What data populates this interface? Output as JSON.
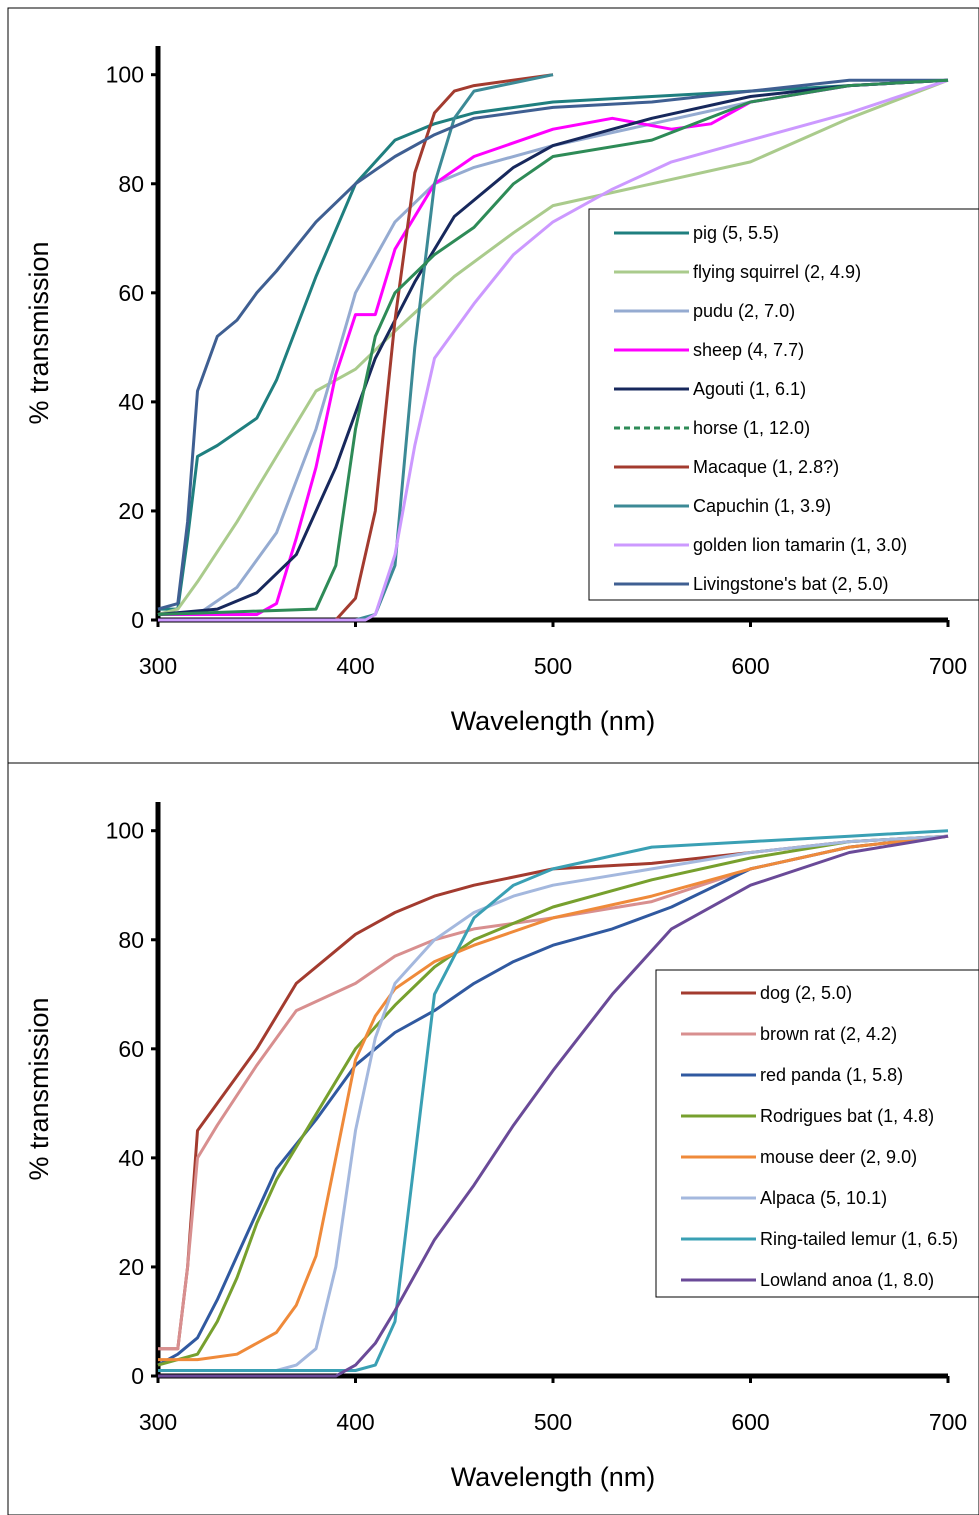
{
  "chart_data": [
    {
      "type": "line",
      "xlabel": "Wavelength (nm)",
      "ylabel": "% transmission",
      "xlim": [
        300,
        700
      ],
      "ylim": [
        0,
        100
      ],
      "x_ticks": [
        "300",
        "400",
        "500",
        "600",
        "700"
      ],
      "y_ticks": [
        "0",
        "20",
        "40",
        "60",
        "80",
        "100"
      ],
      "grid": false,
      "legend_position": "right",
      "series": [
        {
          "name": "pig (5, 5.5)",
          "color": "#1f7f7f",
          "dash": "solid",
          "x": [
            300,
            310,
            315,
            320,
            330,
            350,
            360,
            380,
            400,
            420,
            440,
            460,
            500,
            550,
            600,
            650,
            700
          ],
          "y": [
            2,
            2,
            15,
            30,
            32,
            37,
            44,
            63,
            80,
            88,
            91,
            93,
            95,
            96,
            97,
            98,
            99
          ]
        },
        {
          "name": "flying squirrel (2, 4.9)",
          "color": "#aacb8c",
          "dash": "solid",
          "x": [
            300,
            310,
            320,
            340,
            360,
            380,
            400,
            420,
            450,
            480,
            500,
            550,
            600,
            650,
            700
          ],
          "y": [
            1,
            2,
            7,
            18,
            30,
            42,
            46,
            53,
            63,
            71,
            76,
            80,
            84,
            92,
            99
          ]
        },
        {
          "name": "pudu (2, 7.0)",
          "color": "#95abd1",
          "dash": "solid",
          "x": [
            300,
            320,
            340,
            360,
            380,
            400,
            420,
            440,
            460,
            500,
            550,
            600,
            650,
            700
          ],
          "y": [
            1,
            1,
            6,
            16,
            35,
            60,
            73,
            80,
            83,
            87,
            91,
            95,
            98,
            99
          ]
        },
        {
          "name": "sheep (4, 7.7)",
          "color": "#ff00ff",
          "dash": "solid",
          "x": [
            300,
            350,
            360,
            370,
            380,
            390,
            400,
            410,
            420,
            440,
            460,
            500,
            530,
            560,
            580,
            600,
            650,
            700
          ],
          "y": [
            1,
            1,
            3,
            15,
            28,
            45,
            56,
            56,
            68,
            80,
            85,
            90,
            92,
            90,
            91,
            95,
            98,
            99
          ]
        },
        {
          "name": "Agouti (1, 6.1)",
          "color": "#17285c",
          "dash": "solid",
          "x": [
            300,
            330,
            350,
            370,
            390,
            410,
            430,
            450,
            480,
            500,
            550,
            600,
            650,
            700
          ],
          "y": [
            1,
            2,
            5,
            12,
            28,
            48,
            62,
            74,
            83,
            87,
            92,
            96,
            98,
            99
          ]
        },
        {
          "name": "horse (1, 12.0)",
          "color": "#2e8b57",
          "dash": "dashed",
          "x": [],
          "y": []
        },
        {
          "name": "Macaque (1, 2.8?)",
          "color": "#a33b2f",
          "dash": "solid",
          "x": [
            300,
            390,
            395,
            400,
            410,
            420,
            430,
            440,
            450,
            460,
            500
          ],
          "y": [
            0,
            0,
            2,
            4,
            20,
            55,
            82,
            93,
            97,
            98,
            100
          ]
        },
        {
          "name": "Capuchin (1, 3.9)",
          "color": "#3c8a96",
          "dash": "solid",
          "x": [
            300,
            400,
            410,
            420,
            430,
            440,
            450,
            460,
            500
          ],
          "y": [
            0,
            0,
            1,
            10,
            50,
            80,
            92,
            97,
            100
          ]
        },
        {
          "name": "golden lion tamarin (1, 3.0)",
          "color": "#cc99ff",
          "dash": "solid",
          "x": [
            300,
            405,
            410,
            420,
            430,
            440,
            460,
            480,
            500,
            530,
            560,
            600,
            650,
            700
          ],
          "y": [
            0,
            0,
            1,
            12,
            32,
            48,
            58,
            67,
            73,
            79,
            84,
            88,
            93,
            99
          ]
        },
        {
          "name": "Livingstone's bat (2, 5.0)",
          "color": "#3f5f92",
          "dash": "solid",
          "x": [
            300,
            310,
            315,
            320,
            330,
            340,
            350,
            360,
            380,
            400,
            420,
            440,
            460,
            500,
            550,
            600,
            650,
            700
          ],
          "y": [
            2,
            3,
            18,
            42,
            52,
            55,
            60,
            64,
            73,
            80,
            85,
            89,
            92,
            94,
            95,
            97,
            99,
            99
          ]
        },
        {
          "name": "",
          "color": "#2e8b57",
          "dash": "solid",
          "x": [
            300,
            380,
            390,
            400,
            410,
            420,
            440,
            460,
            480,
            500,
            550,
            600,
            650,
            700
          ],
          "y": [
            1,
            2,
            10,
            35,
            52,
            60,
            67,
            72,
            80,
            85,
            88,
            95,
            98,
            99
          ]
        }
      ]
    },
    {
      "type": "line",
      "xlabel": "Wavelength (nm)",
      "ylabel": "% transmission",
      "xlim": [
        300,
        700
      ],
      "ylim": [
        0,
        100
      ],
      "x_ticks": [
        "300",
        "400",
        "500",
        "600",
        "700"
      ],
      "y_ticks": [
        "0",
        "20",
        "40",
        "60",
        "80",
        "100"
      ],
      "grid": false,
      "legend_position": "right",
      "series": [
        {
          "name": "dog (2, 5.0)",
          "color": "#a33b2f",
          "dash": "solid",
          "x": [
            300,
            310,
            315,
            320,
            330,
            350,
            370,
            390,
            400,
            420,
            440,
            460,
            500,
            550,
            600,
            650,
            700
          ],
          "y": [
            5,
            5,
            20,
            45,
            50,
            60,
            72,
            78,
            81,
            85,
            88,
            90,
            93,
            94,
            96,
            98,
            99
          ]
        },
        {
          "name": "brown rat (2, 4.2)",
          "color": "#d88f8f",
          "dash": "solid",
          "x": [
            300,
            310,
            315,
            320,
            330,
            350,
            370,
            400,
            420,
            440,
            460,
            500,
            550,
            600,
            650,
            700
          ],
          "y": [
            5,
            5,
            20,
            40,
            46,
            57,
            67,
            72,
            77,
            80,
            82,
            84,
            87,
            93,
            97,
            99
          ]
        },
        {
          "name": "red panda (1, 5.8)",
          "color": "#3059a0",
          "dash": "solid",
          "x": [
            300,
            310,
            320,
            330,
            340,
            350,
            360,
            380,
            400,
            420,
            440,
            460,
            480,
            500,
            530,
            560,
            600,
            650,
            700
          ],
          "y": [
            2,
            4,
            7,
            14,
            22,
            30,
            38,
            47,
            57,
            63,
            67,
            72,
            76,
            79,
            82,
            86,
            93,
            97,
            99
          ]
        },
        {
          "name": "Rodrigues bat (1, 4.8)",
          "color": "#77a02e",
          "dash": "solid",
          "x": [
            300,
            320,
            330,
            340,
            350,
            360,
            380,
            400,
            420,
            440,
            460,
            500,
            550,
            600,
            650,
            700
          ],
          "y": [
            2,
            4,
            10,
            18,
            28,
            36,
            48,
            60,
            68,
            75,
            80,
            86,
            91,
            95,
            98,
            99
          ]
        },
        {
          "name": "mouse deer (2, 9.0)",
          "color": "#ef8a3a",
          "dash": "solid",
          "x": [
            300,
            320,
            340,
            360,
            370,
            380,
            390,
            400,
            410,
            420,
            440,
            460,
            500,
            550,
            600,
            650,
            700
          ],
          "y": [
            3,
            3,
            4,
            8,
            13,
            22,
            40,
            58,
            66,
            71,
            76,
            79,
            84,
            88,
            93,
            97,
            99
          ]
        },
        {
          "name": "Alpaca (5, 10.1)",
          "color": "#a4b8de",
          "dash": "solid",
          "x": [
            300,
            360,
            370,
            380,
            390,
            400,
            410,
            420,
            440,
            460,
            480,
            500,
            550,
            600,
            650,
            700
          ],
          "y": [
            1,
            1,
            2,
            5,
            20,
            45,
            62,
            72,
            80,
            85,
            88,
            90,
            93,
            96,
            98,
            99
          ]
        },
        {
          "name": "Ring-tailed lemur (1, 6.5)",
          "color": "#3aa0b4",
          "dash": "solid",
          "x": [
            300,
            400,
            410,
            420,
            430,
            440,
            460,
            480,
            500,
            550,
            600,
            650,
            700
          ],
          "y": [
            1,
            1,
            2,
            10,
            40,
            70,
            84,
            90,
            93,
            97,
            98,
            99,
            100
          ]
        },
        {
          "name": "Lowland anoa (1, 8.0)",
          "color": "#6a4a98",
          "dash": "solid",
          "x": [
            300,
            390,
            400,
            410,
            420,
            440,
            460,
            480,
            500,
            530,
            560,
            600,
            650,
            700
          ],
          "y": [
            0,
            0,
            2,
            6,
            12,
            25,
            35,
            46,
            56,
            70,
            82,
            90,
            96,
            99
          ]
        }
      ]
    }
  ]
}
